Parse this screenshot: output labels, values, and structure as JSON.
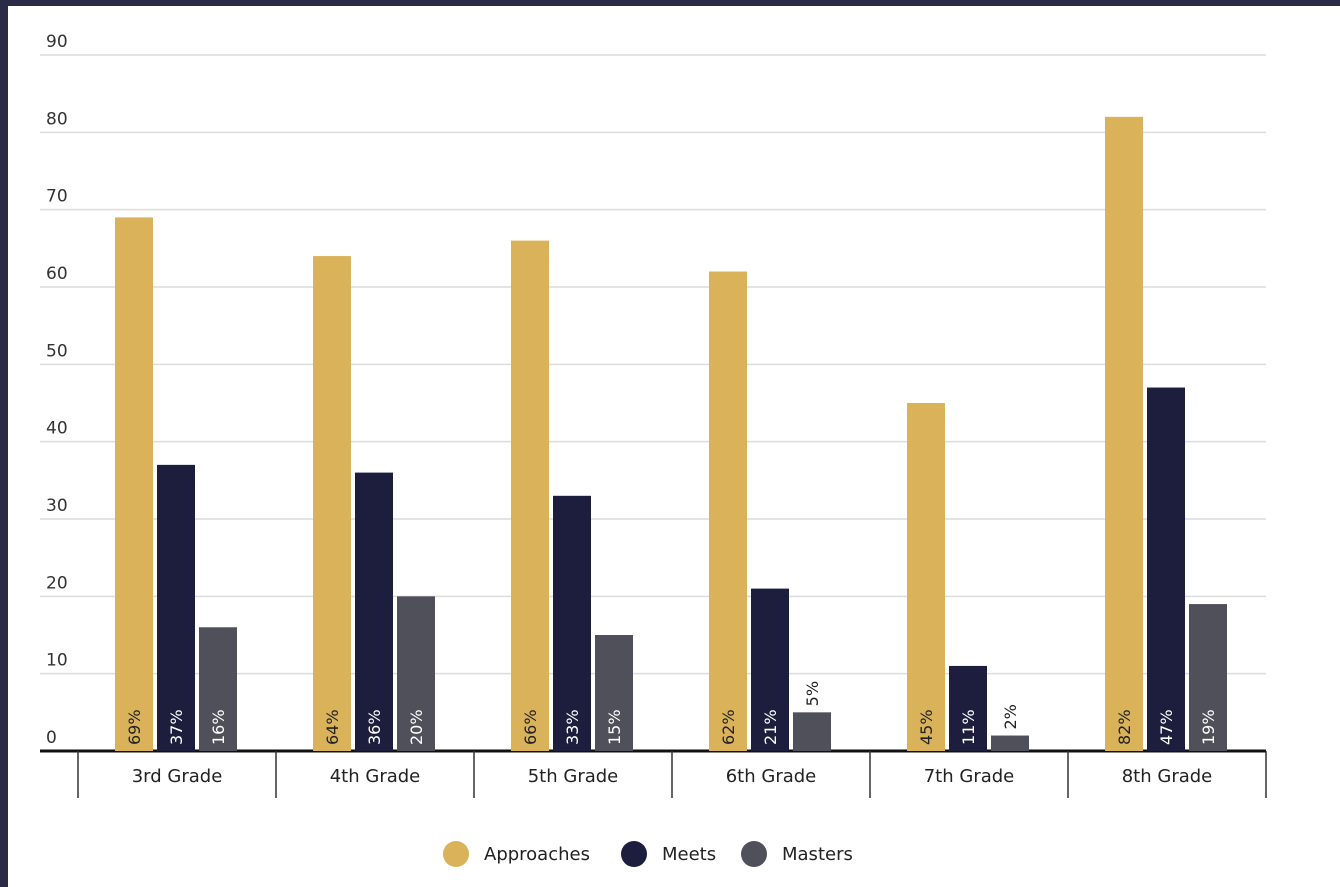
{
  "chart_data": {
    "type": "bar",
    "categories": [
      "3rd Grade",
      "4th Grade",
      "5th Grade",
      "6th Grade",
      "7th Grade",
      "8th Grade"
    ],
    "series": [
      {
        "name": "Approaches",
        "color": "#d9b25a",
        "values": [
          69,
          64,
          66,
          62,
          45,
          82
        ],
        "labels": [
          "69%",
          "64%",
          "66%",
          "62%",
          "45%",
          "82%"
        ]
      },
      {
        "name": "Meets",
        "color": "#1d1e3d",
        "values": [
          37,
          36,
          33,
          21,
          11,
          47
        ],
        "labels": [
          "37%",
          "36%",
          "33%",
          "21%",
          "11%",
          "47%"
        ]
      },
      {
        "name": "Masters",
        "color": "#4f5059",
        "values": [
          16,
          20,
          15,
          5,
          2,
          19
        ],
        "labels": [
          "16%",
          "20%",
          "15%",
          "5%",
          "2%",
          "19%"
        ]
      }
    ],
    "ylim": [
      0,
      90
    ],
    "yticks": [
      "0",
      "10",
      "20",
      "30",
      "40",
      "50",
      "60",
      "70",
      "80",
      "90"
    ],
    "grid": true,
    "legend_position": "bottom-center",
    "title": "",
    "xlabel": "",
    "ylabel": ""
  }
}
